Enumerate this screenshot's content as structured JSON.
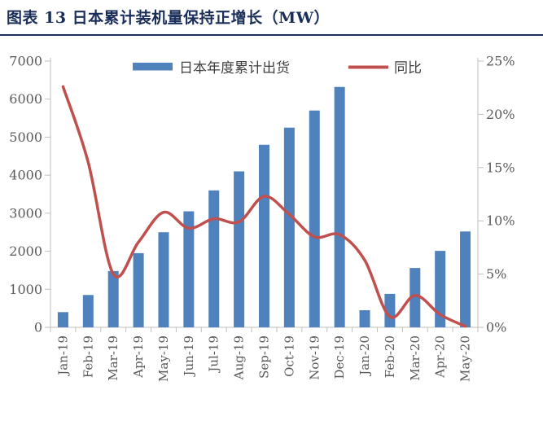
{
  "header": {
    "title": "图表 13 日本累计装机量保持正增长（MW）"
  },
  "legend": {
    "bar_label": "日本年度累计出货",
    "line_label": "同比"
  },
  "colors": {
    "bar": "#4F81BD",
    "line": "#C0504D",
    "axis": "#BFBFBF",
    "axis_text": "#595959",
    "legend_text": "#3f3f3f",
    "title_navy": "#1a2e5a"
  },
  "chart_data": {
    "type": "bar+line",
    "title": "图表 13 日本累计装机量保持正增长（MW）",
    "categories": [
      "Jan-19",
      "Feb-19",
      "Mar-19",
      "Apr-19",
      "May-19",
      "Jun-19",
      "Jul-19",
      "Aug-19",
      "Sep-19",
      "Oct-19",
      "Nov-19",
      "Dec-19",
      "Jan-20",
      "Feb-20",
      "Mar-20",
      "Apr-20",
      "May-20"
    ],
    "series": [
      {
        "name": "日本年度累计出货",
        "type": "bar",
        "axis": "left",
        "color": "#4F81BD",
        "values": [
          400,
          850,
          1480,
          1950,
          2500,
          3050,
          3600,
          4100,
          4800,
          5250,
          5700,
          6320,
          450,
          880,
          1560,
          2010,
          2520
        ]
      },
      {
        "name": "同比",
        "type": "line",
        "axis": "right",
        "color": "#C0504D",
        "values": [
          22.6,
          15.5,
          5.0,
          8.0,
          10.8,
          9.3,
          10.2,
          9.9,
          12.3,
          10.6,
          8.5,
          8.7,
          6.3,
          1.0,
          3.0,
          1.2,
          0.1
        ]
      }
    ],
    "left_axis": {
      "min": 0,
      "max": 7000,
      "step": 1000,
      "tick_labels": [
        "0",
        "1000",
        "2000",
        "3000",
        "4000",
        "5000",
        "6000",
        "7000"
      ]
    },
    "right_axis": {
      "min": 0,
      "max": 25,
      "step": 5,
      "unit": "%",
      "tick_labels": [
        "0%",
        "5%",
        "10%",
        "15%",
        "20%",
        "25%"
      ]
    },
    "legend_position": "top",
    "grid": false
  }
}
